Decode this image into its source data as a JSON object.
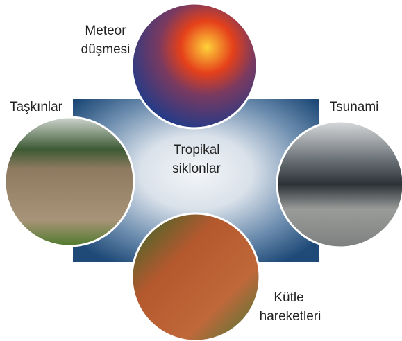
{
  "center": {
    "label": [
      "Tropikal",
      "siklonlar"
    ]
  },
  "nodes": [
    {
      "label": [
        "Meteor",
        "düşmesi"
      ]
    },
    {
      "label": [
        "Taşkınlar"
      ]
    },
    {
      "label": [
        "Tsunami"
      ]
    },
    {
      "label": [
        "Kütle",
        "hareketleri"
      ]
    }
  ]
}
